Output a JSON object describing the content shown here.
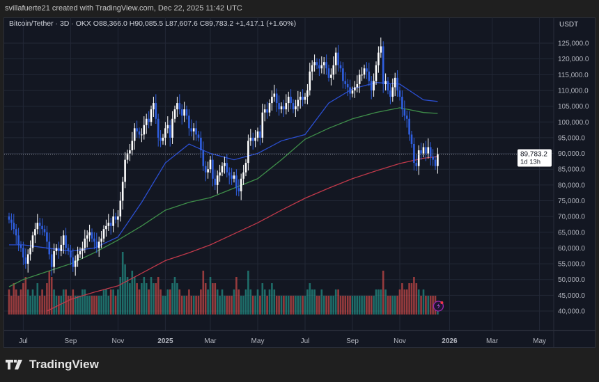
{
  "credit": "svillafuerte21 created with TradingView.com, Dec 22, 2025 11:42 UTC",
  "legend": "Bitcoin/Tether · 3D · OKX  O88,366.0  H90,085.5  L87,607.6  C89,783.2  +1,417.1 (+1.60%)",
  "logo_text": "TradingView",
  "colors": {
    "up": "#ffffff",
    "down": "#2f5fe0",
    "vol_up": "#26a69a",
    "vol_down": "#ef5350",
    "ma_fast": "#2b4fd1",
    "ma_mid": "#3f8f4a",
    "ma_slow": "#c0394a",
    "background": "#131722"
  },
  "chart_data": {
    "type": "candlestick",
    "interval": "3D",
    "currency": "USDT",
    "ylim": [
      38000,
      130000
    ],
    "y_ticks": [
      "125,000.0",
      "120,000.0",
      "115,000.0",
      "110,000.0",
      "105,000.0",
      "100,000.0",
      "95,000.0",
      "90,000.0",
      "85,000.0",
      "80,000.0",
      "75,000.0",
      "70,000.0",
      "65,000.0",
      "60,000.0",
      "55,000.0",
      "50,000.0",
      "45,000.0",
      "40,000.0"
    ],
    "x_ticks": [
      "Jul",
      "Sep",
      "Nov",
      "2025",
      "Mar",
      "May",
      "Jul",
      "Sep",
      "Nov",
      "2026",
      "Mar",
      "May"
    ],
    "last_price": "89,783.2",
    "countdown": "1d 13h",
    "closes_k": [
      69,
      68,
      66,
      64,
      61,
      60,
      57,
      55,
      58,
      60,
      64,
      66,
      68,
      67,
      66,
      65,
      62,
      58,
      54,
      59,
      60,
      59,
      61,
      64,
      60,
      59,
      57,
      54,
      56,
      58,
      59,
      60,
      63,
      64,
      65,
      63,
      62,
      60,
      62,
      63,
      66,
      67,
      68,
      67,
      70,
      69,
      70,
      75,
      81,
      88,
      90,
      91,
      94,
      98,
      97,
      96,
      96,
      99,
      101,
      100,
      104,
      106,
      101,
      95,
      94,
      95,
      98,
      99,
      95,
      101,
      104,
      106,
      104,
      102,
      104,
      102,
      98,
      97,
      98,
      96,
      95,
      91,
      86,
      84,
      85,
      88,
      82,
      80,
      83,
      84,
      86,
      87,
      84,
      83,
      82,
      83,
      79,
      78,
      82,
      84,
      87,
      94,
      95,
      94,
      95,
      97,
      95,
      103,
      104,
      103,
      106,
      108,
      109,
      106,
      104,
      105,
      104,
      106,
      108,
      106,
      104,
      105,
      107,
      108,
      107,
      108,
      110,
      116,
      118,
      119,
      118,
      117,
      118,
      119,
      117,
      114,
      115,
      118,
      122,
      118,
      117,
      113,
      112,
      111,
      109,
      110,
      111,
      112,
      115,
      115,
      117,
      116,
      113,
      110,
      113,
      118,
      122,
      124,
      112,
      113,
      110,
      108,
      111,
      114,
      110,
      108,
      104,
      102,
      101,
      96,
      93,
      87,
      86,
      91,
      90,
      92,
      90,
      92,
      89,
      88,
      86,
      89.783
    ],
    "volume_rel": [
      4,
      3,
      5,
      4,
      3,
      4,
      5,
      6,
      4,
      3,
      4,
      3,
      5,
      3,
      4,
      3,
      5,
      7,
      6,
      4,
      3,
      3,
      3,
      4,
      4,
      3,
      3,
      4,
      3,
      3,
      3,
      4,
      4,
      3,
      3,
      3,
      3,
      3,
      3,
      3,
      4,
      4,
      3,
      4,
      4,
      3,
      4,
      6,
      10,
      8,
      6,
      5,
      7,
      6,
      5,
      4,
      5,
      6,
      5,
      4,
      6,
      5,
      5,
      6,
      4,
      3,
      3,
      4,
      4,
      5,
      6,
      5,
      4,
      3,
      3,
      3,
      4,
      3,
      3,
      3,
      3,
      4,
      7,
      5,
      4,
      6,
      5,
      5,
      4,
      3,
      4,
      3,
      3,
      3,
      3,
      4,
      6,
      4,
      3,
      3,
      4,
      7,
      4,
      3,
      3,
      4,
      3,
      5,
      4,
      3,
      4,
      5,
      4,
      3,
      3,
      3,
      3,
      3,
      3,
      3,
      3,
      3,
      3,
      3,
      3,
      3,
      4,
      5,
      4,
      4,
      3,
      3,
      4,
      3,
      3,
      3,
      3,
      3,
      4,
      4,
      3,
      3,
      3,
      3,
      3,
      3,
      3,
      3,
      3,
      3,
      3,
      3,
      3,
      3,
      3,
      4,
      4,
      4,
      7,
      4,
      3,
      3,
      3,
      3,
      3,
      4,
      5,
      4,
      4,
      5,
      5,
      6,
      5,
      4,
      3,
      4,
      3,
      3,
      3,
      3,
      3,
      2
    ],
    "moving_averages": [
      {
        "key": "ma_fast",
        "points": [
          [
            "2024-06",
            61
          ],
          [
            "2024-07",
            61
          ],
          [
            "2024-08",
            60
          ],
          [
            "2024-09",
            59
          ],
          [
            "2024-10",
            60
          ],
          [
            "2024-11",
            63.5
          ],
          [
            "2024-12",
            74.5
          ],
          [
            "2025-01",
            87
          ],
          [
            "2025-02",
            93
          ],
          [
            "2025-03",
            90
          ],
          [
            "2025-04",
            88
          ],
          [
            "2025-05",
            90
          ],
          [
            "2025-06",
            94
          ],
          [
            "2025-07",
            96
          ],
          [
            "2025-08",
            106
          ],
          [
            "2025-09",
            110.5
          ],
          [
            "2025-10",
            112.5
          ],
          [
            "2025-11",
            112
          ],
          [
            "2025-12",
            107
          ],
          [
            "2025-12-22",
            106.5
          ]
        ]
      },
      {
        "key": "ma_mid",
        "points": [
          [
            "2024-06",
            47.7
          ],
          [
            "2024-07",
            50
          ],
          [
            "2024-08",
            52.5
          ],
          [
            "2024-09",
            55
          ],
          [
            "2024-10",
            58.5
          ],
          [
            "2024-11",
            62.5
          ],
          [
            "2024-12",
            67
          ],
          [
            "2025-01",
            72
          ],
          [
            "2025-02",
            74.5
          ],
          [
            "2025-03",
            76
          ],
          [
            "2025-04",
            79
          ],
          [
            "2025-05",
            82
          ],
          [
            "2025-06",
            88
          ],
          [
            "2025-07",
            94.5
          ],
          [
            "2025-08",
            98
          ],
          [
            "2025-09",
            101
          ],
          [
            "2025-10",
            103
          ],
          [
            "2025-11",
            104.5
          ],
          [
            "2025-12",
            103
          ],
          [
            "2025-12-22",
            102.7
          ]
        ]
      },
      {
        "key": "ma_slow",
        "points": [
          [
            "2024-08",
            40
          ],
          [
            "2024-09",
            43.7
          ],
          [
            "2024-10",
            46
          ],
          [
            "2024-11",
            48
          ],
          [
            "2024-12",
            52
          ],
          [
            "2025-01",
            56
          ],
          [
            "2025-02",
            58.5
          ],
          [
            "2025-03",
            61
          ],
          [
            "2025-04",
            64.5
          ],
          [
            "2025-05",
            68
          ],
          [
            "2025-06",
            72
          ],
          [
            "2025-07",
            75.8
          ],
          [
            "2025-08",
            79
          ],
          [
            "2025-09",
            82
          ],
          [
            "2025-10",
            84.5
          ],
          [
            "2025-11",
            86.8
          ],
          [
            "2025-12",
            88.5
          ],
          [
            "2025-12-22",
            89
          ]
        ]
      }
    ]
  }
}
